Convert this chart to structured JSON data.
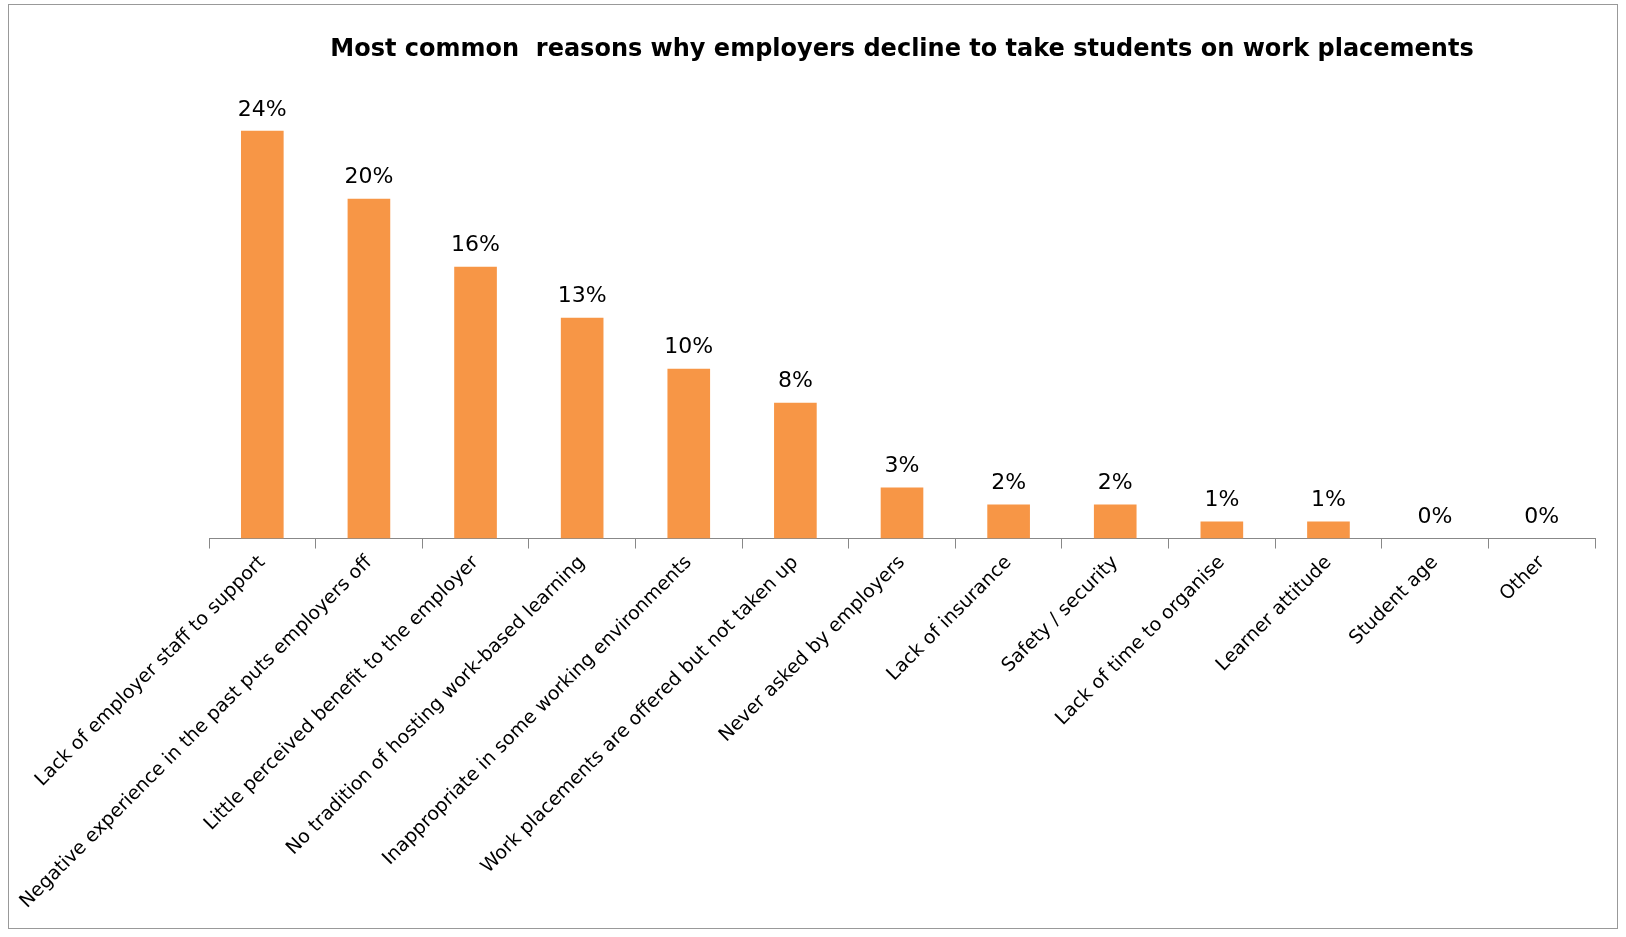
{
  "chart_data": {
    "type": "bar",
    "title": "Most common  reasons why employers decline to take students on work placements",
    "categories": [
      "Lack of employer staff to support",
      "Negative experience in the past puts employers off",
      "Little perceived benefit to the employer",
      "No tradition of hosting work-based learning",
      "Inappropriate in some working environments",
      "Work placements are offered but not taken up",
      "Never asked by employers",
      "Lack of insurance",
      "Safety / security",
      "Lack of time to organise",
      "Learner attitude",
      "Student age",
      "Other"
    ],
    "values": [
      24,
      20,
      16,
      13,
      10,
      8,
      3,
      2,
      2,
      1,
      1,
      0,
      0
    ],
    "value_labels": [
      "24%",
      "20%",
      "16%",
      "13%",
      "10%",
      "8%",
      "3%",
      "2%",
      "2%",
      "1%",
      "1%",
      "0%",
      "0%"
    ],
    "color": "#f79646",
    "grid": false,
    "legend": false
  }
}
